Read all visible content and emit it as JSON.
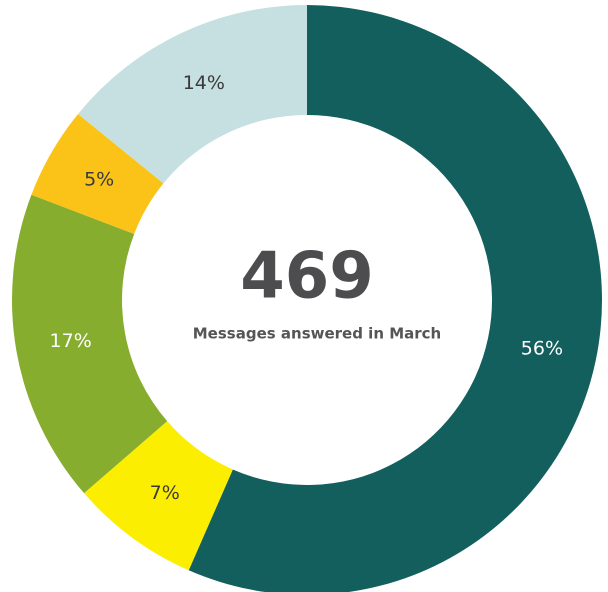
{
  "chart_data": {
    "type": "donut",
    "center_value": 469,
    "center_caption": "Messages answered in March",
    "categories": [
      null,
      null,
      null,
      null,
      null
    ],
    "values": [
      56,
      7,
      17,
      5,
      14
    ],
    "value_labels": [
      "56%",
      "7%",
      "17%",
      "5%",
      "14%"
    ],
    "colors": [
      "#135f5e",
      "#fcee00",
      "#86ad2e",
      "#fbc318",
      "#c6dfe0"
    ],
    "start_angle": 0,
    "direction": "clockwise"
  }
}
